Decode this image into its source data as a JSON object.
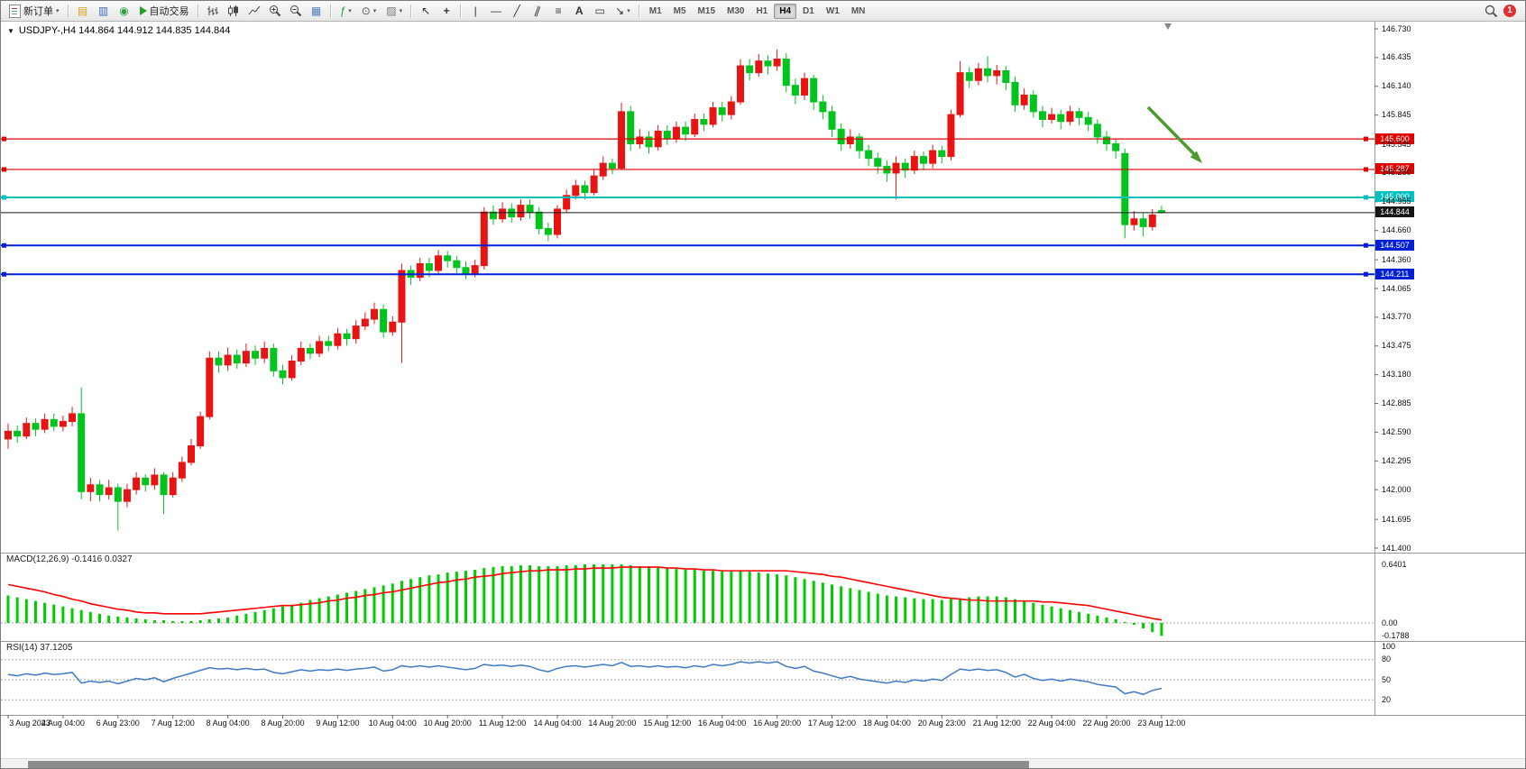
{
  "toolbar": {
    "new_order": "新订单",
    "autotrade": "自动交易",
    "timeframes": [
      "M1",
      "M5",
      "M15",
      "M30",
      "H1",
      "H4",
      "D1",
      "W1",
      "MN"
    ],
    "active_timeframe": "H4",
    "notification_count": "1",
    "glyphs": {
      "caret": "▾",
      "collapse": "▼",
      "market_watch": "▤",
      "data_window": "▥",
      "navigator": "◉",
      "tile_windows": "▦",
      "indicators": "ƒ",
      "periods": "⊙",
      "templates": "▨",
      "cursor": "↖",
      "crosshair": "+",
      "vline": "|",
      "hline": "—",
      "trendline": "╱",
      "channel": "∥",
      "fibonacci": "≡",
      "text_tool": "A",
      "label_tool": "▭",
      "arrows_tool": "↘"
    }
  },
  "chart": {
    "title": "USDJPY-,H4 144.864 144.912 144.835 144.844",
    "symbol": "USDJPY-",
    "timeframe": "H4",
    "ohlc": {
      "open": "144.864",
      "high": "144.912",
      "low": "144.835",
      "close": "144.844"
    },
    "up_color": "#e81414",
    "down_color": "#00c41e",
    "arrow_color": "#4e9a2e",
    "axis": {
      "price_max": 146.73,
      "price_min": 141.4
    },
    "price_ticks": [
      "146.730",
      "146.435",
      "146.140",
      "145.845",
      "145.545",
      "145.250",
      "144.955",
      "144.660",
      "144.360",
      "144.065",
      "143.770",
      "143.475",
      "143.180",
      "142.885",
      "142.590",
      "142.295",
      "142.000",
      "141.695",
      "141.400"
    ],
    "levels": [
      {
        "price": 145.6,
        "label": "145.600",
        "color": "#e00000",
        "width": 1.2
      },
      {
        "price": 145.287,
        "label": "145.287",
        "color": "#e00000",
        "width": 1.2
      },
      {
        "price": 145.0,
        "label": "145.000",
        "color": "#00c0c0",
        "width": 2
      },
      {
        "price": 144.844,
        "label": "144.844",
        "color": "#151515",
        "width": 1,
        "current": true
      },
      {
        "price": 144.507,
        "label": "144.507",
        "color": "#0020d8",
        "width": 2
      },
      {
        "price": 144.211,
        "label": "144.211",
        "color": "#0020d8",
        "width": 2
      }
    ],
    "candles": [
      [
        142.52,
        142.68,
        142.42,
        142.6
      ],
      [
        142.6,
        142.66,
        142.48,
        142.55
      ],
      [
        142.55,
        142.74,
        142.52,
        142.68
      ],
      [
        142.68,
        142.73,
        142.55,
        142.62
      ],
      [
        142.62,
        142.78,
        142.58,
        142.72
      ],
      [
        142.72,
        142.78,
        142.6,
        142.65
      ],
      [
        142.65,
        142.76,
        142.6,
        142.7
      ],
      [
        142.7,
        142.85,
        142.65,
        142.78
      ],
      [
        142.78,
        143.05,
        141.9,
        141.98
      ],
      [
        141.98,
        142.12,
        141.88,
        142.05
      ],
      [
        142.05,
        142.1,
        141.88,
        141.95
      ],
      [
        141.95,
        142.1,
        141.9,
        142.02
      ],
      [
        142.02,
        142.06,
        141.58,
        141.88
      ],
      [
        141.88,
        142.06,
        141.82,
        142.0
      ],
      [
        142.0,
        142.18,
        141.95,
        142.12
      ],
      [
        142.12,
        142.16,
        141.98,
        142.05
      ],
      [
        142.05,
        142.22,
        142.0,
        142.15
      ],
      [
        142.15,
        142.18,
        141.75,
        141.95
      ],
      [
        141.95,
        142.18,
        141.92,
        142.12
      ],
      [
        142.12,
        142.34,
        142.08,
        142.28
      ],
      [
        142.28,
        142.52,
        142.25,
        142.45
      ],
      [
        142.45,
        142.8,
        142.42,
        142.75
      ],
      [
        142.75,
        143.42,
        142.72,
        143.35
      ],
      [
        143.35,
        143.42,
        143.2,
        143.28
      ],
      [
        143.28,
        143.46,
        143.22,
        143.38
      ],
      [
        143.38,
        143.44,
        143.24,
        143.3
      ],
      [
        143.3,
        143.5,
        143.26,
        143.42
      ],
      [
        143.42,
        143.48,
        143.28,
        143.35
      ],
      [
        143.35,
        143.52,
        143.3,
        143.45
      ],
      [
        143.45,
        143.5,
        143.16,
        143.22
      ],
      [
        143.22,
        143.28,
        143.08,
        143.15
      ],
      [
        143.15,
        143.38,
        143.12,
        143.32
      ],
      [
        143.32,
        143.52,
        143.28,
        143.45
      ],
      [
        143.45,
        143.5,
        143.34,
        143.4
      ],
      [
        143.4,
        143.58,
        143.36,
        143.52
      ],
      [
        143.52,
        143.58,
        143.42,
        143.48
      ],
      [
        143.48,
        143.66,
        143.44,
        143.6
      ],
      [
        143.6,
        143.65,
        143.48,
        143.55
      ],
      [
        143.55,
        143.74,
        143.5,
        143.68
      ],
      [
        143.68,
        143.82,
        143.64,
        143.75
      ],
      [
        143.75,
        143.92,
        143.7,
        143.85
      ],
      [
        143.85,
        143.9,
        143.56,
        143.62
      ],
      [
        143.62,
        143.78,
        143.58,
        143.72
      ],
      [
        143.72,
        144.32,
        143.3,
        144.25
      ],
      [
        144.25,
        144.3,
        144.1,
        144.18
      ],
      [
        144.18,
        144.38,
        144.14,
        144.32
      ],
      [
        144.32,
        144.38,
        144.18,
        144.25
      ],
      [
        144.25,
        144.46,
        144.2,
        144.4
      ],
      [
        144.4,
        144.45,
        144.28,
        144.35
      ],
      [
        144.35,
        144.4,
        144.22,
        144.28
      ],
      [
        144.28,
        144.34,
        144.16,
        144.22
      ],
      [
        144.22,
        144.36,
        144.18,
        144.3
      ],
      [
        144.3,
        144.9,
        144.26,
        144.85
      ],
      [
        144.85,
        144.92,
        144.72,
        144.78
      ],
      [
        144.78,
        144.95,
        144.74,
        144.88
      ],
      [
        144.88,
        144.94,
        144.74,
        144.8
      ],
      [
        144.8,
        144.98,
        144.76,
        144.92
      ],
      [
        144.92,
        144.98,
        144.78,
        144.85
      ],
      [
        144.85,
        144.9,
        144.62,
        144.68
      ],
      [
        144.68,
        144.74,
        144.55,
        144.62
      ],
      [
        144.62,
        144.92,
        144.58,
        144.88
      ],
      [
        144.88,
        145.08,
        144.84,
        145.02
      ],
      [
        145.02,
        145.18,
        144.98,
        145.12
      ],
      [
        145.12,
        145.17,
        144.98,
        145.05
      ],
      [
        145.05,
        145.28,
        145.02,
        145.22
      ],
      [
        145.22,
        145.42,
        145.18,
        145.35
      ],
      [
        145.35,
        145.4,
        145.24,
        145.3
      ],
      [
        145.3,
        145.97,
        145.28,
        145.88
      ],
      [
        145.88,
        145.94,
        145.48,
        145.55
      ],
      [
        145.55,
        145.7,
        145.5,
        145.62
      ],
      [
        145.62,
        145.68,
        145.45,
        145.52
      ],
      [
        145.52,
        145.74,
        145.48,
        145.68
      ],
      [
        145.68,
        145.74,
        145.54,
        145.6
      ],
      [
        145.6,
        145.78,
        145.56,
        145.72
      ],
      [
        145.72,
        145.78,
        145.58,
        145.65
      ],
      [
        145.65,
        145.86,
        145.62,
        145.8
      ],
      [
        145.8,
        145.86,
        145.68,
        145.75
      ],
      [
        145.75,
        145.98,
        145.72,
        145.92
      ],
      [
        145.92,
        145.98,
        145.78,
        145.85
      ],
      [
        145.85,
        146.04,
        145.8,
        145.98
      ],
      [
        145.98,
        146.42,
        145.95,
        146.35
      ],
      [
        146.35,
        146.42,
        146.2,
        146.28
      ],
      [
        146.28,
        146.47,
        146.24,
        146.4
      ],
      [
        146.4,
        146.46,
        146.26,
        146.35
      ],
      [
        146.35,
        146.52,
        146.3,
        146.42
      ],
      [
        146.42,
        146.48,
        146.08,
        146.15
      ],
      [
        146.15,
        146.22,
        145.96,
        146.05
      ],
      [
        146.05,
        146.28,
        146.0,
        146.22
      ],
      [
        146.22,
        146.26,
        145.9,
        145.98
      ],
      [
        145.98,
        146.05,
        145.8,
        145.88
      ],
      [
        145.88,
        145.94,
        145.62,
        145.7
      ],
      [
        145.7,
        145.76,
        145.48,
        145.55
      ],
      [
        145.55,
        145.7,
        145.5,
        145.62
      ],
      [
        145.62,
        145.66,
        145.4,
        145.48
      ],
      [
        145.48,
        145.54,
        145.32,
        145.4
      ],
      [
        145.4,
        145.46,
        145.24,
        145.32
      ],
      [
        145.32,
        145.38,
        145.16,
        145.25
      ],
      [
        145.25,
        145.42,
        144.98,
        145.35
      ],
      [
        145.35,
        145.4,
        145.2,
        145.28
      ],
      [
        145.28,
        145.48,
        145.24,
        145.42
      ],
      [
        145.42,
        145.47,
        145.28,
        145.35
      ],
      [
        145.35,
        145.54,
        145.3,
        145.48
      ],
      [
        145.48,
        145.53,
        145.35,
        145.42
      ],
      [
        145.42,
        145.9,
        145.38,
        145.85
      ],
      [
        145.85,
        146.4,
        145.82,
        146.28
      ],
      [
        146.28,
        146.34,
        146.12,
        146.2
      ],
      [
        146.2,
        146.38,
        146.15,
        146.32
      ],
      [
        146.32,
        146.45,
        146.18,
        146.25
      ],
      [
        146.25,
        146.36,
        146.16,
        146.3
      ],
      [
        146.3,
        146.35,
        146.1,
        146.18
      ],
      [
        146.18,
        146.24,
        145.88,
        145.95
      ],
      [
        145.95,
        146.12,
        145.9,
        146.05
      ],
      [
        146.05,
        146.1,
        145.82,
        145.88
      ],
      [
        145.88,
        145.94,
        145.72,
        145.8
      ],
      [
        145.8,
        145.92,
        145.76,
        145.85
      ],
      [
        145.85,
        145.9,
        145.7,
        145.78
      ],
      [
        145.78,
        145.94,
        145.74,
        145.88
      ],
      [
        145.88,
        145.92,
        145.74,
        145.82
      ],
      [
        145.82,
        145.88,
        145.68,
        145.75
      ],
      [
        145.75,
        145.8,
        145.55,
        145.62
      ],
      [
        145.62,
        145.68,
        145.48,
        145.55
      ],
      [
        145.55,
        145.6,
        145.4,
        145.48
      ],
      [
        145.45,
        145.5,
        144.58,
        144.72
      ],
      [
        144.72,
        144.86,
        144.66,
        144.78
      ],
      [
        144.78,
        144.84,
        144.6,
        144.7
      ],
      [
        144.7,
        144.88,
        144.66,
        144.82
      ],
      [
        144.864,
        144.912,
        144.835,
        144.844
      ]
    ]
  },
  "macd": {
    "name": "MACD(12,26,9)",
    "value_main": "-0.1416",
    "value_signal": "0.0327",
    "scale_labels": [
      "0.6401",
      "0.00",
      "-0.1788"
    ],
    "max": 0.6401,
    "min": -0.1788,
    "hist_color": "#00cc00",
    "signal_color": "#ff0000",
    "histogram": [
      0.3,
      0.28,
      0.26,
      0.24,
      0.22,
      0.2,
      0.18,
      0.16,
      0.14,
      0.12,
      0.1,
      0.08,
      0.07,
      0.06,
      0.05,
      0.04,
      0.03,
      0.03,
      0.02,
      0.02,
      0.02,
      0.03,
      0.04,
      0.05,
      0.06,
      0.08,
      0.1,
      0.12,
      0.14,
      0.16,
      0.18,
      0.2,
      0.22,
      0.25,
      0.27,
      0.29,
      0.31,
      0.33,
      0.35,
      0.37,
      0.39,
      0.41,
      0.43,
      0.46,
      0.48,
      0.5,
      0.52,
      0.53,
      0.55,
      0.56,
      0.57,
      0.58,
      0.6,
      0.61,
      0.62,
      0.62,
      0.63,
      0.63,
      0.62,
      0.62,
      0.62,
      0.63,
      0.63,
      0.64,
      0.64,
      0.64,
      0.64,
      0.64,
      0.63,
      0.62,
      0.62,
      0.61,
      0.6,
      0.59,
      0.58,
      0.58,
      0.57,
      0.57,
      0.56,
      0.56,
      0.57,
      0.56,
      0.55,
      0.54,
      0.53,
      0.52,
      0.5,
      0.48,
      0.46,
      0.44,
      0.42,
      0.4,
      0.38,
      0.36,
      0.34,
      0.32,
      0.3,
      0.29,
      0.28,
      0.27,
      0.26,
      0.26,
      0.25,
      0.26,
      0.27,
      0.28,
      0.29,
      0.29,
      0.29,
      0.28,
      0.26,
      0.24,
      0.22,
      0.2,
      0.18,
      0.16,
      0.14,
      0.12,
      0.1,
      0.08,
      0.06,
      0.04,
      0.01,
      -0.02,
      -0.06,
      -0.1,
      -0.1416
    ],
    "signal": [
      0.42,
      0.4,
      0.38,
      0.36,
      0.34,
      0.31,
      0.29,
      0.26,
      0.24,
      0.21,
      0.19,
      0.17,
      0.15,
      0.14,
      0.12,
      0.11,
      0.11,
      0.1,
      0.1,
      0.1,
      0.1,
      0.1,
      0.11,
      0.12,
      0.13,
      0.14,
      0.15,
      0.16,
      0.17,
      0.18,
      0.19,
      0.19,
      0.2,
      0.21,
      0.22,
      0.24,
      0.25,
      0.27,
      0.28,
      0.3,
      0.31,
      0.33,
      0.34,
      0.36,
      0.38,
      0.4,
      0.42,
      0.44,
      0.45,
      0.47,
      0.48,
      0.5,
      0.51,
      0.52,
      0.54,
      0.55,
      0.56,
      0.57,
      0.57,
      0.58,
      0.58,
      0.58,
      0.59,
      0.59,
      0.6,
      0.6,
      0.6,
      0.61,
      0.61,
      0.61,
      0.61,
      0.61,
      0.6,
      0.6,
      0.59,
      0.59,
      0.58,
      0.58,
      0.57,
      0.57,
      0.57,
      0.57,
      0.57,
      0.57,
      0.57,
      0.57,
      0.56,
      0.55,
      0.54,
      0.53,
      0.51,
      0.5,
      0.48,
      0.46,
      0.44,
      0.42,
      0.4,
      0.38,
      0.36,
      0.34,
      0.32,
      0.3,
      0.28,
      0.27,
      0.26,
      0.25,
      0.25,
      0.24,
      0.24,
      0.24,
      0.24,
      0.24,
      0.24,
      0.23,
      0.23,
      0.22,
      0.21,
      0.2,
      0.19,
      0.17,
      0.15,
      0.13,
      0.11,
      0.09,
      0.07,
      0.05,
      0.0327
    ]
  },
  "rsi": {
    "name": "RSI(14)",
    "value": "37.1205",
    "line_color": "#3e7bc6",
    "levels": [
      "100",
      "80",
      "50",
      "20"
    ],
    "level_values": [
      100,
      80,
      50,
      20
    ],
    "dashed_levels": [
      80,
      50,
      20
    ],
    "values": [
      58,
      56,
      59,
      57,
      60,
      58,
      59,
      61,
      45,
      48,
      46,
      48,
      44,
      48,
      52,
      50,
      53,
      47,
      52,
      56,
      60,
      64,
      68,
      66,
      67,
      65,
      67,
      65,
      66,
      61,
      59,
      62,
      65,
      63,
      65,
      64,
      66,
      64,
      66,
      67,
      69,
      63,
      65,
      71,
      69,
      71,
      69,
      71,
      69,
      67,
      65,
      67,
      73,
      71,
      72,
      70,
      72,
      70,
      65,
      62,
      67,
      70,
      71,
      69,
      71,
      73,
      71,
      76,
      70,
      71,
      69,
      71,
      69,
      70,
      68,
      71,
      69,
      73,
      71,
      73,
      77,
      75,
      77,
      75,
      77,
      70,
      67,
      70,
      63,
      60,
      56,
      52,
      55,
      51,
      49,
      47,
      45,
      48,
      46,
      50,
      48,
      51,
      49,
      58,
      66,
      64,
      66,
      64,
      65,
      61,
      54,
      58,
      52,
      49,
      51,
      48,
      51,
      49,
      47,
      43,
      41,
      39,
      29,
      32,
      28,
      34,
      37.12
    ]
  },
  "dates": [
    "3 Aug 2023",
    "4 Aug 04:00",
    "6 Aug 23:00",
    "7 Aug 12:00",
    "8 Aug 04:00",
    "8 Aug 20:00",
    "9 Aug 12:00",
    "10 Aug 04:00",
    "10 Aug 20:00",
    "11 Aug 12:00",
    "14 Aug 04:00",
    "14 Aug 20:00",
    "15 Aug 12:00",
    "16 Aug 04:00",
    "16 Aug 20:00",
    "17 Aug 12:00",
    "18 Aug 04:00",
    "20 Aug 23:00",
    "21 Aug 12:00",
    "22 Aug 04:00",
    "22 Aug 20:00",
    "23 Aug 12:00"
  ]
}
